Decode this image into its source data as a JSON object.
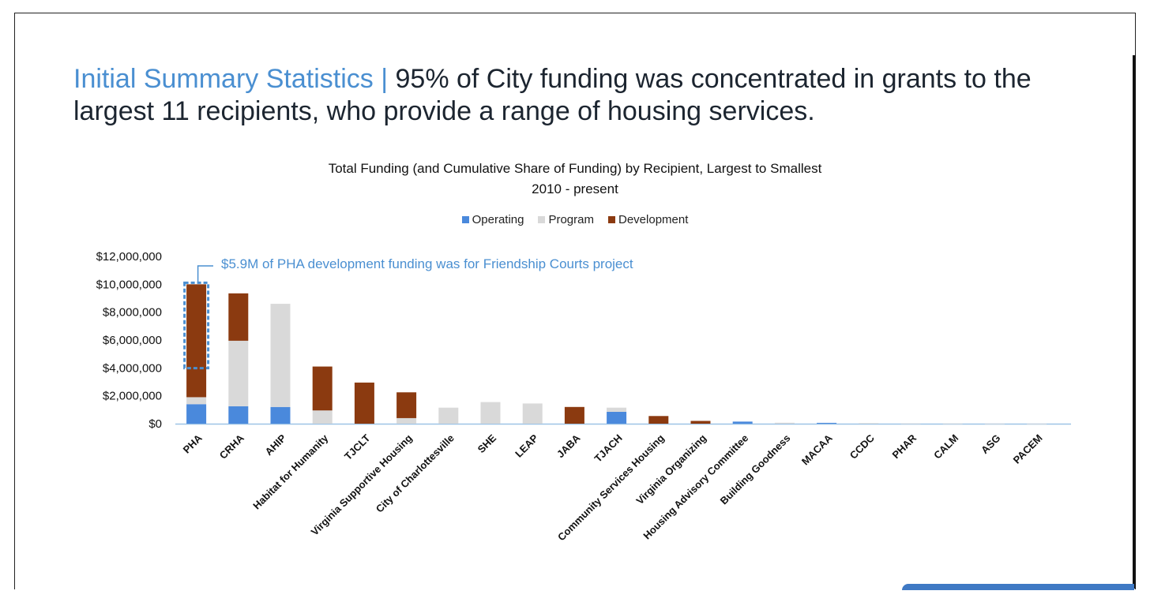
{
  "slide": {
    "title_lead": "Initial Summary Statistics | ",
    "title_rest": "95% of City funding was concentrated in grants to the largest 11 recipients, who provide a range of housing services."
  },
  "colors": {
    "operating": "#4a89dc",
    "program": "#d9d9d9",
    "development": "#8b3a10",
    "accent": "#4a8fd1"
  },
  "chart_data": {
    "type": "bar",
    "stacked": true,
    "title": "Total Funding (and Cumulative Share of Funding) by Recipient, Largest to Smallest",
    "subtitle": "2010 - present",
    "xlabel": "",
    "ylabel": "",
    "ylim": [
      0,
      12000000
    ],
    "yticks": [
      "$0",
      "$2,000,000",
      "$4,000,000",
      "$6,000,000",
      "$8,000,000",
      "$10,000,000",
      "$12,000,000"
    ],
    "legend_position": "top-center",
    "grid": false,
    "categories": [
      "PHA",
      "CRHA",
      "AHIP",
      "Habitat for Humanity",
      "TJCLT",
      "Virginia Supportive Housing",
      "City of Charlottesville",
      "SHE",
      "LEAP",
      "JABA",
      "TJACH",
      "Community Services Housing",
      "Virginia Organizing",
      "Housing Advisory Committee",
      "Building Goodness",
      "MACAA",
      "CCDC",
      "PHAR",
      "CALM",
      "ASG",
      "PACEM"
    ],
    "series": [
      {
        "name": "Operating",
        "values": [
          1400000,
          1250000,
          1200000,
          0,
          0,
          0,
          0,
          0,
          0,
          0,
          850000,
          0,
          0,
          150000,
          0,
          60000,
          0,
          0,
          0,
          0,
          0
        ]
      },
      {
        "name": "Program",
        "values": [
          500000,
          4700000,
          7400000,
          950000,
          0,
          400000,
          1150000,
          1550000,
          1450000,
          0,
          300000,
          0,
          0,
          0,
          70000,
          0,
          40000,
          20000,
          15000,
          10000,
          5000
        ]
      },
      {
        "name": "Development",
        "values": [
          8100000,
          3400000,
          0,
          3150000,
          2950000,
          1850000,
          0,
          0,
          0,
          1200000,
          0,
          550000,
          200000,
          0,
          0,
          0,
          0,
          0,
          0,
          0,
          0
        ]
      }
    ],
    "annotation": {
      "text": "$5.9M of PHA development funding was for Friendship Courts project",
      "category": "PHA",
      "range": [
        4100000,
        10000000
      ]
    }
  }
}
